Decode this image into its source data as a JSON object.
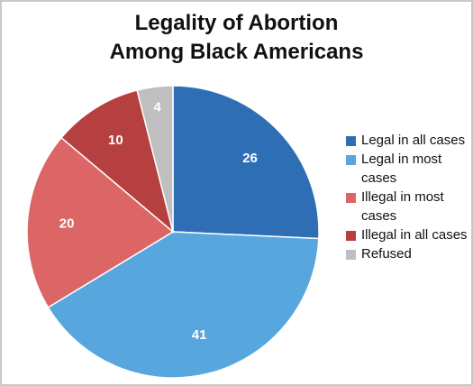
{
  "chart_data": {
    "type": "pie",
    "title_lines": [
      "Legality of Abortion",
      "Among Black Americans"
    ],
    "categories": [
      "Legal in all cases",
      "Legal in most cases",
      "Illegal in most cases",
      "Illegal in all cases",
      "Refused"
    ],
    "values": [
      26,
      41,
      20,
      10,
      4
    ],
    "value_labels": [
      "26",
      "41",
      "20",
      "10",
      "4"
    ],
    "colors": [
      "#2e6eb5",
      "#58a6de",
      "#dc6665",
      "#b5403f",
      "#bfbfbf"
    ],
    "legend_position": "right",
    "start": "top, clockwise"
  }
}
